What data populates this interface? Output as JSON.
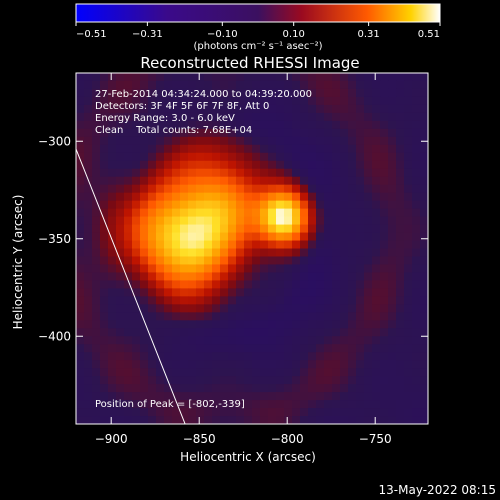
{
  "chart_data": {
    "type": "heatmap",
    "title": "Reconstructed RHESSI Image",
    "colorbar": {
      "min": -0.51,
      "max": 0.51,
      "ticks": [
        "-0.51",
        "-0.31",
        "-0.10",
        "0.10",
        "0.31",
        "0.51"
      ],
      "unit_label": "(photons cm⁻² s⁻¹ asec⁻²)",
      "colors": [
        "#0000ff",
        "#2a0060",
        "#3b0f6a",
        "#b01010",
        "#ff6a00",
        "#ffd700",
        "#ffffff"
      ]
    },
    "xlabel": "Heliocentric X (arcsec)",
    "ylabel": "Heliocentric Y (arcsec)",
    "xlim": [
      -920,
      -720
    ],
    "ylim": [
      -445,
      -265
    ],
    "x_ticks": [
      -900,
      -850,
      -800,
      -750
    ],
    "y_ticks": [
      -400,
      -350,
      -300
    ],
    "annotations": [
      "27-Feb-2014 04:34:24.000 to 04:39:20.000",
      "Detectors: 3F 4F 5F 6F 7F 8F, Att 0",
      "Energy Range: 3.0 - 6.0 keV",
      "Clean    Total counts: 7.68E+04"
    ],
    "peak_label": "Position of Peak = [-802,-339]",
    "peak": {
      "x": -802,
      "y": -339
    },
    "sources": [
      {
        "x": -802,
        "y": -339,
        "peak": 0.51,
        "sigma": 10
      },
      {
        "x": -852,
        "y": -352,
        "peak": 0.33,
        "sigma": 16
      },
      {
        "x": -878,
        "y": -345,
        "peak": 0.2,
        "sigma": 17
      },
      {
        "x": -832,
        "y": -335,
        "peak": 0.17,
        "sigma": 14
      },
      {
        "x": -848,
        "y": -320,
        "peak": 0.15,
        "sigma": 20
      },
      {
        "x": -860,
        "y": -372,
        "peak": 0.07,
        "sigma": 18
      }
    ],
    "limb_line": [
      {
        "x": -920,
        "y": -304
      },
      {
        "x": -858,
        "y": -445
      }
    ]
  },
  "footer": {
    "timestamp": "13-May-2022 08:15"
  }
}
